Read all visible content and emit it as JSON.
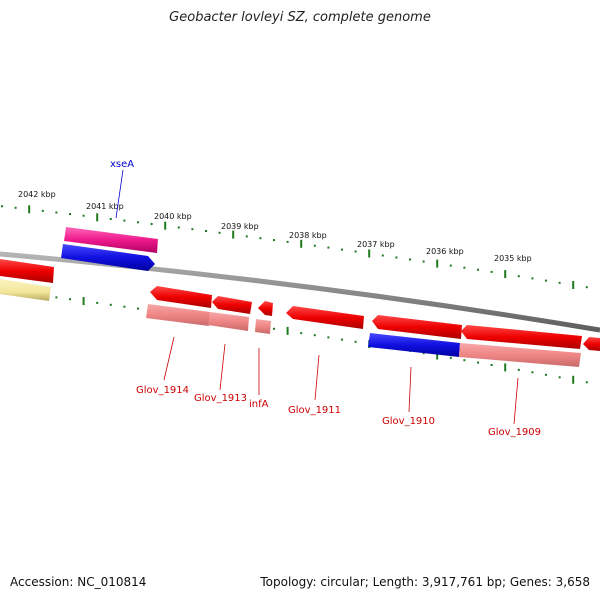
{
  "title": "Geobacter lovleyi SZ, complete genome",
  "footer": {
    "accession": "Accession: NC_010814",
    "summary": "Topology: circular; Length: 3,917,761 bp; Genes: 3,658"
  },
  "colors": {
    "backbone": "#8a8a8a",
    "tick": "#1f7a1f",
    "cds": "#ee0000",
    "cds_light": "#f08c8c",
    "pseudo_blue": "#1010e0",
    "pink": "#ee1a8c",
    "yellow": "#f2e69a",
    "label_red": "#cc0000",
    "label_blue": "#0000cc"
  },
  "kbp_labels": [
    "2042 kbp",
    "2041 kbp",
    "2040 kbp",
    "2039 kbp",
    "2038 kbp",
    "2037 kbp",
    "2036 kbp",
    "2035 kbp"
  ],
  "genes": [
    {
      "name": "xseA",
      "color": "blue"
    },
    {
      "name": "Glov_1914",
      "color": "red"
    },
    {
      "name": "Glov_1913",
      "color": "red"
    },
    {
      "name": "infA",
      "color": "red"
    },
    {
      "name": "Glov_1911",
      "color": "red"
    },
    {
      "name": "Glov_1910",
      "color": "red"
    },
    {
      "name": "Glov_1909",
      "color": "red"
    }
  ]
}
